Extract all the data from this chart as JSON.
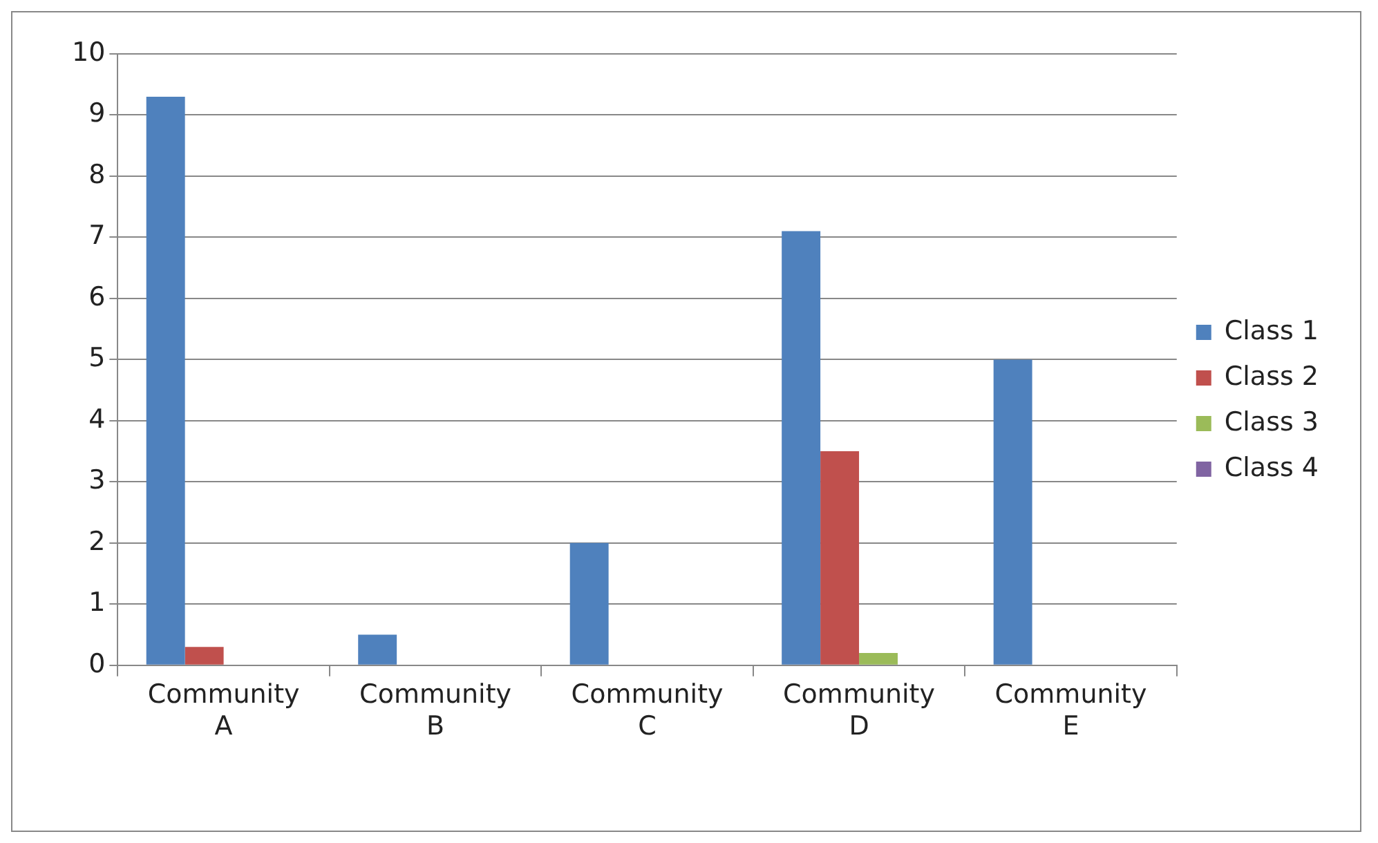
{
  "chart_data": {
    "type": "bar",
    "categories": [
      "Community A",
      "Community B",
      "Community C",
      "Community D",
      "Community E"
    ],
    "series": [
      {
        "name": "Class 1",
        "color": "#4f81bd",
        "values": [
          9.3,
          0.5,
          2,
          7.1,
          5
        ]
      },
      {
        "name": "Class 2",
        "color": "#c0504d",
        "values": [
          0.3,
          0,
          0,
          3.5,
          0
        ]
      },
      {
        "name": "Class 3",
        "color": "#9bbb59",
        "values": [
          0,
          0,
          0,
          0.2,
          0
        ]
      },
      {
        "name": "Class 4",
        "color": "#8064a2",
        "values": [
          0,
          0,
          0,
          0,
          0
        ]
      }
    ],
    "ylim": [
      0,
      10
    ],
    "yticks": [
      0,
      1,
      2,
      3,
      4,
      5,
      6,
      7,
      8,
      9,
      10
    ],
    "grid": "y",
    "legend": "right"
  }
}
